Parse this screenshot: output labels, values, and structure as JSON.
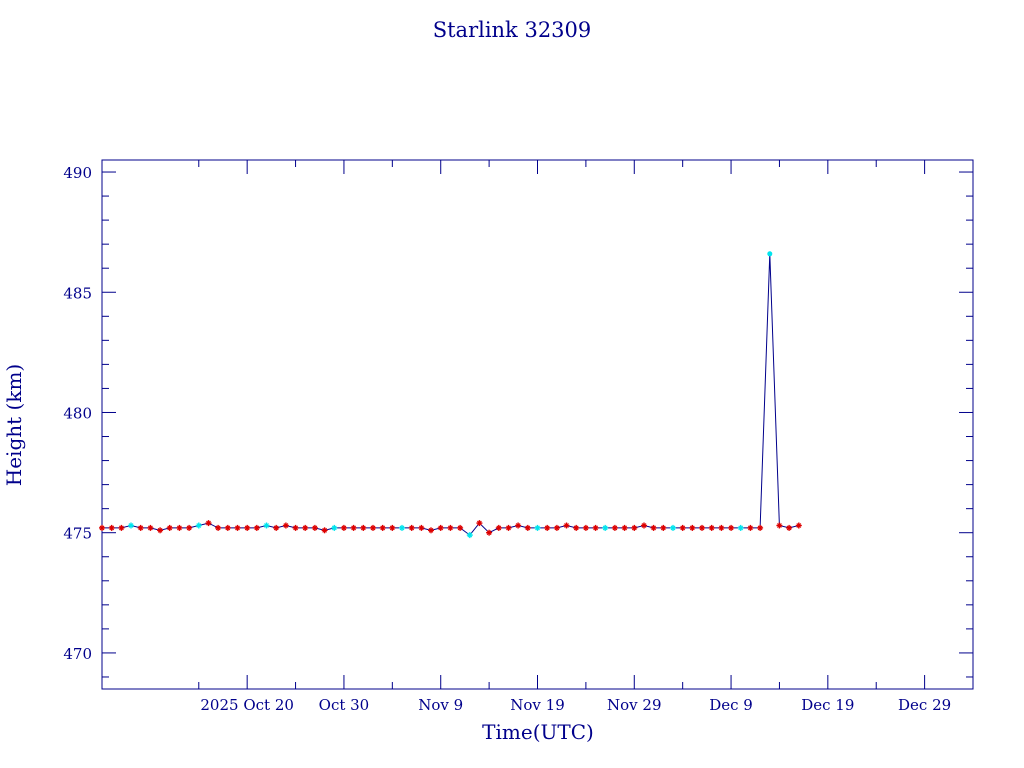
{
  "chart_data": {
    "type": "line",
    "title": "Starlink 32309",
    "xlabel": "Time(UTC)",
    "ylabel": "Height (km)",
    "ylim": [
      468.5,
      490.5
    ],
    "xlim": [
      "2025-10-05",
      "2026-01-03"
    ],
    "yticks": [
      470,
      475,
      480,
      485,
      490
    ],
    "xticks": [
      {
        "date": "2025-10-20",
        "label": "2025 Oct 20"
      },
      {
        "date": "2025-10-30",
        "label": "Oct 30"
      },
      {
        "date": "2025-11-09",
        "label": "Nov  9"
      },
      {
        "date": "2025-11-19",
        "label": "Nov 19"
      },
      {
        "date": "2025-11-29",
        "label": "Nov 29"
      },
      {
        "date": "2025-12-09",
        "label": "Dec  9"
      },
      {
        "date": "2025-12-19",
        "label": "Dec 19"
      },
      {
        "date": "2025-12-29",
        "label": "Dec 29"
      }
    ],
    "grid": false,
    "colors": {
      "axis": "#00008b",
      "line": "#00008b",
      "marker": "#dd0000",
      "highlight": "#00e5ee"
    },
    "series": [
      {
        "x": [
          "2025-10-05",
          "2025-10-06",
          "2025-10-07",
          "2025-10-08",
          "2025-10-09",
          "2025-10-10",
          "2025-10-11",
          "2025-10-12",
          "2025-10-13",
          "2025-10-14",
          "2025-10-15",
          "2025-10-16",
          "2025-10-17",
          "2025-10-18",
          "2025-10-19",
          "2025-10-20",
          "2025-10-21",
          "2025-10-22",
          "2025-10-23",
          "2025-10-24",
          "2025-10-25",
          "2025-10-26",
          "2025-10-27",
          "2025-10-28",
          "2025-10-29",
          "2025-10-30",
          "2025-10-31",
          "2025-11-01",
          "2025-11-02",
          "2025-11-03",
          "2025-11-04",
          "2025-11-05",
          "2025-11-06",
          "2025-11-07",
          "2025-11-08",
          "2025-11-09",
          "2025-11-10",
          "2025-11-11",
          "2025-11-12",
          "2025-11-13",
          "2025-11-14",
          "2025-11-15",
          "2025-11-16",
          "2025-11-17",
          "2025-11-18",
          "2025-11-19",
          "2025-11-20",
          "2025-11-21",
          "2025-11-22",
          "2025-11-23",
          "2025-11-24",
          "2025-11-25",
          "2025-11-26",
          "2025-11-27",
          "2025-11-28",
          "2025-11-29",
          "2025-11-30",
          "2025-12-01",
          "2025-12-02",
          "2025-12-03",
          "2025-12-04",
          "2025-12-05",
          "2025-12-06",
          "2025-12-07",
          "2025-12-08",
          "2025-12-09",
          "2025-12-10",
          "2025-12-11",
          "2025-12-12",
          "2025-12-13",
          "2025-12-14",
          "2025-12-15",
          "2025-12-16"
        ],
        "y": [
          475.2,
          475.2,
          475.2,
          475.3,
          475.2,
          475.2,
          475.1,
          475.2,
          475.2,
          475.2,
          475.3,
          475.4,
          475.2,
          475.2,
          475.2,
          475.2,
          475.2,
          475.3,
          475.2,
          475.3,
          475.2,
          475.2,
          475.2,
          475.1,
          475.2,
          475.2,
          475.2,
          475.2,
          475.2,
          475.2,
          475.2,
          475.2,
          475.2,
          475.2,
          475.1,
          475.2,
          475.2,
          475.2,
          474.9,
          475.4,
          475.0,
          475.2,
          475.2,
          475.3,
          475.2,
          475.2,
          475.2,
          475.2,
          475.3,
          475.2,
          475.2,
          475.2,
          475.2,
          475.2,
          475.2,
          475.2,
          475.3,
          475.2,
          475.2,
          475.2,
          475.2,
          475.2,
          475.2,
          475.2,
          475.2,
          475.2,
          475.2,
          475.2,
          475.2,
          486.6,
          475.3,
          475.2,
          475.3
        ]
      }
    ]
  }
}
